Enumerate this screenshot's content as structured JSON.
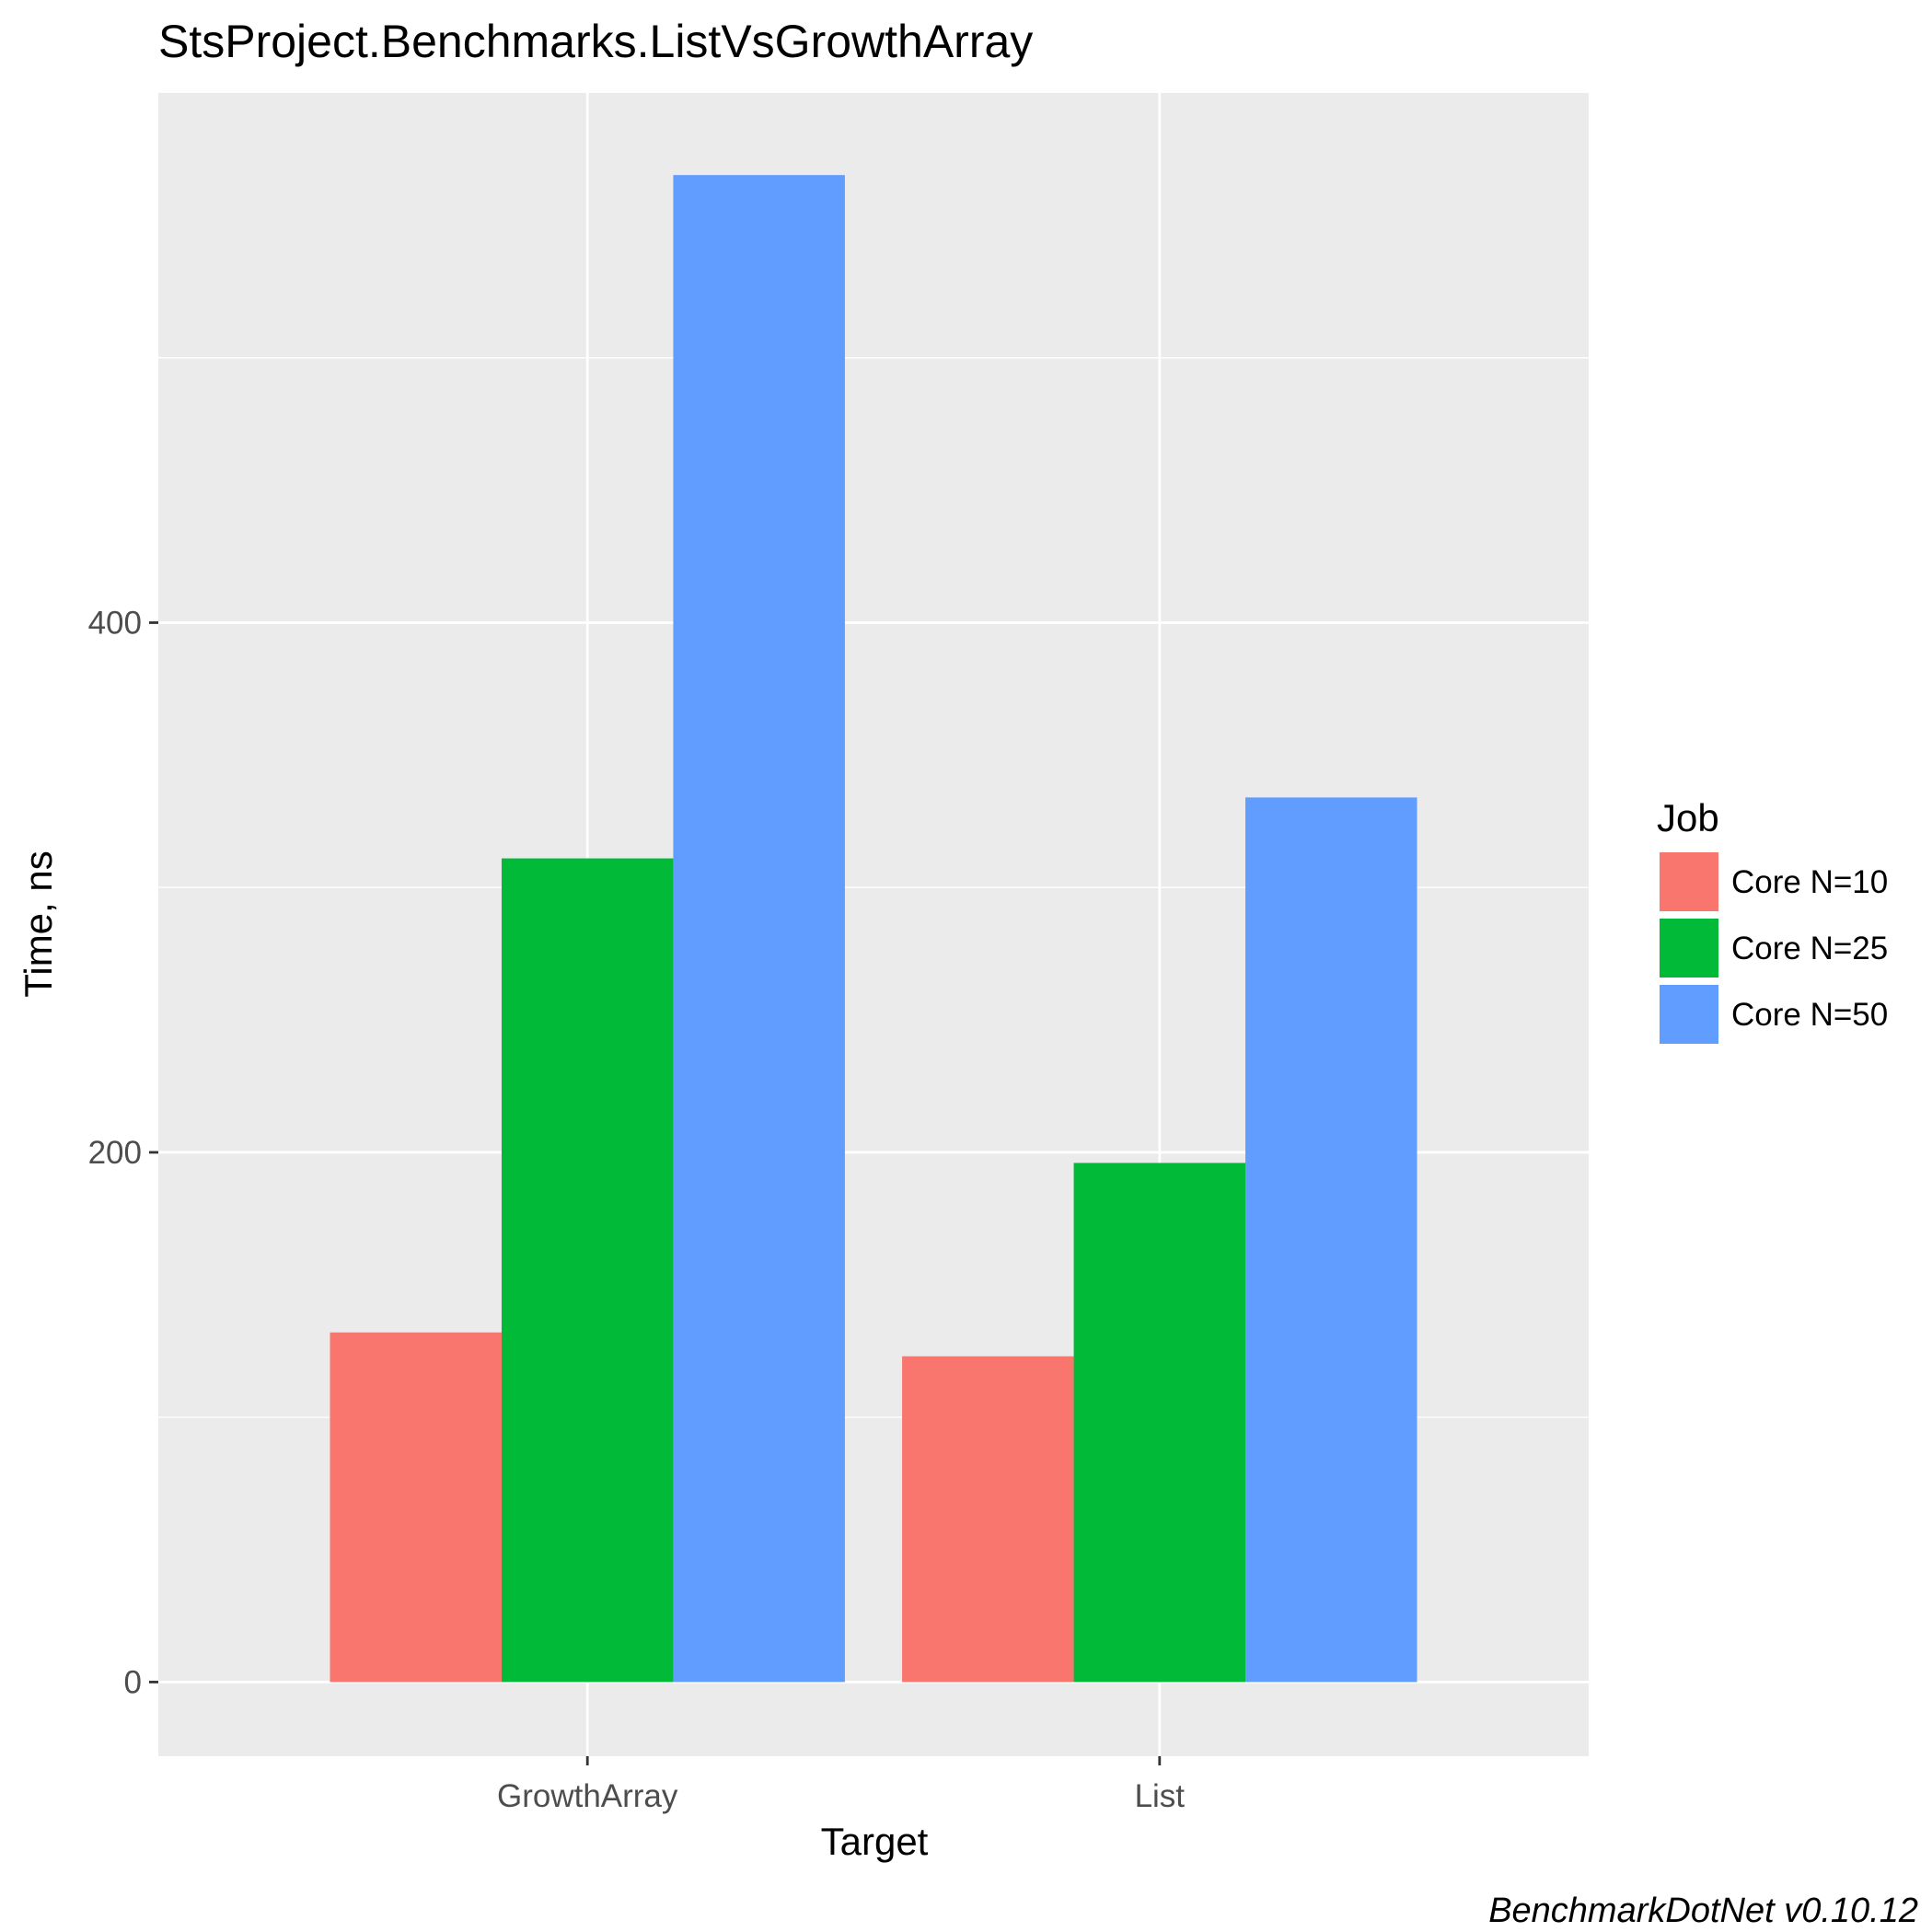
{
  "chart_data": {
    "type": "bar",
    "title": "StsProject.Benchmarks.ListVsGrowthArray",
    "xlabel": "Target",
    "ylabel": "Time, ns",
    "categories": [
      "GrowthArray",
      "List"
    ],
    "series": [
      {
        "name": "Core N=10",
        "color": "#F8766D",
        "values": [
          132,
          123
        ]
      },
      {
        "name": "Core N=25",
        "color": "#00BA38",
        "values": [
          311,
          196
        ]
      },
      {
        "name": "Core N=50",
        "color": "#619CFF",
        "values": [
          569,
          334
        ]
      }
    ],
    "ylim": [
      -28,
      600
    ],
    "yticks": [
      0,
      200,
      400
    ],
    "ytick_labels": [
      "0",
      "200",
      "400"
    ],
    "y_minor_gridlines": [
      100,
      300,
      500
    ],
    "legend_title": "Job",
    "legend_position": "right",
    "grid": true,
    "caption": "BenchmarkDotNet v0.10.12"
  }
}
